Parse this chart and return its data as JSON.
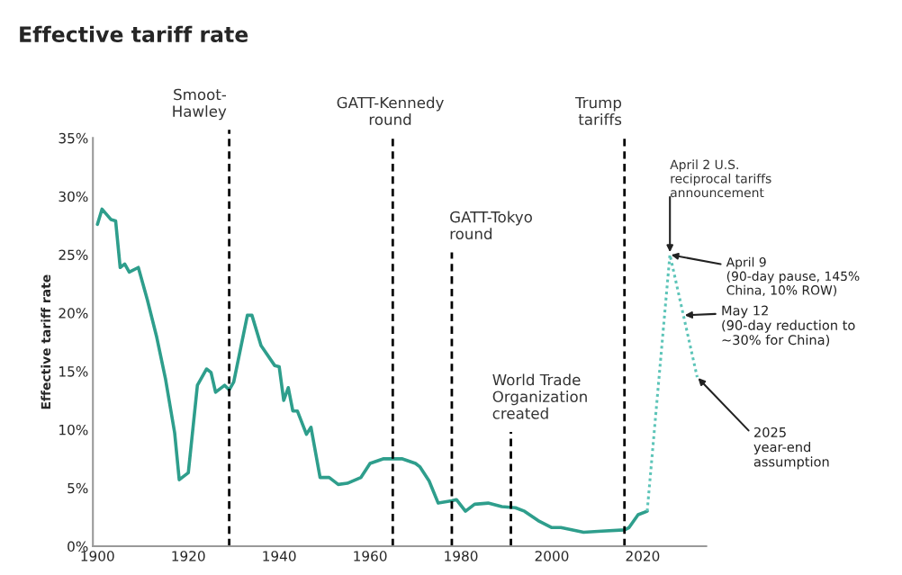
{
  "chart_data": {
    "type": "line",
    "title": "Effective tariff rate",
    "ylabel": "Effective tariff rate",
    "series": [
      {
        "color": "#2e9e8c",
        "line_style": "solid",
        "x": [
          1900,
          1901,
          1903,
          1904,
          1905,
          1906,
          1907,
          1909,
          1911,
          1913,
          1915,
          1917,
          1918,
          1920,
          1922,
          1924,
          1925,
          1926,
          1928,
          1929,
          1930,
          1933,
          1934,
          1936,
          1939,
          1940,
          1941,
          1942,
          1943,
          1944,
          1946,
          1947,
          1949,
          1951,
          1953,
          1955,
          1958,
          1960,
          1963,
          1967,
          1970,
          1971,
          1973,
          1975,
          1978,
          1979,
          1981,
          1983,
          1986,
          1989,
          1992,
          1994,
          1997,
          2000,
          2002,
          2007,
          2011,
          2016,
          2017,
          2019,
          2021
        ],
        "values": [
          27.6,
          28.9,
          28.0,
          27.9,
          23.9,
          24.2,
          23.5,
          23.9,
          21.1,
          18.0,
          14.3,
          9.7,
          5.7,
          6.3,
          13.8,
          15.2,
          14.9,
          13.2,
          13.8,
          13.4,
          14.1,
          19.8,
          19.8,
          17.2,
          15.5,
          15.4,
          12.5,
          13.6,
          11.6,
          11.6,
          9.6,
          10.2,
          5.9,
          5.9,
          5.3,
          5.4,
          5.9,
          7.1,
          7.5,
          7.5,
          7.1,
          6.8,
          5.6,
          3.7,
          3.9,
          4.0,
          3.0,
          3.6,
          3.7,
          3.4,
          3.3,
          3.0,
          2.2,
          1.6,
          1.6,
          1.2,
          1.3,
          1.4,
          1.6,
          2.7,
          3.0
        ]
      },
      {
        "color": "#5cc4b8",
        "line_style": "dotted",
        "x": [
          2021,
          2026,
          2032
        ],
        "values": [
          3.0,
          25.0,
          14.5
        ]
      }
    ],
    "xlim": [
      1899,
      2034
    ],
    "xticks": [
      1900,
      1920,
      1940,
      1960,
      1980,
      2000,
      2020
    ],
    "ylim": [
      0,
      35
    ],
    "yticks": [
      {
        "value": 0,
        "label": "0%"
      },
      {
        "value": 5,
        "label": "5%"
      },
      {
        "value": 10,
        "label": "10%"
      },
      {
        "value": 15,
        "label": "15%"
      },
      {
        "value": 20,
        "label": "20%"
      },
      {
        "value": 25,
        "label": "25%"
      },
      {
        "value": 30,
        "label": "30%"
      },
      {
        "value": 35,
        "label": "35%"
      }
    ],
    "ref_lines": [
      {
        "axis": "x",
        "value": 1929,
        "label": "Smoot-\nHawley",
        "line_style": "dashed",
        "color": "#000000"
      },
      {
        "axis": "x",
        "value": 1965,
        "label": "GATT-Kennedy\nround",
        "line_style": "dashed",
        "color": "#000000"
      },
      {
        "axis": "x",
        "value": 1978,
        "label": "GATT-Tokyo\nround",
        "line_style": "dashed",
        "color": "#000000"
      },
      {
        "axis": "x",
        "value": 1991,
        "label": "World Trade\nOrganization\ncreated",
        "line_style": "dashed",
        "color": "#000000"
      },
      {
        "axis": "x",
        "value": 2016,
        "label": "Trump\ntariffs",
        "line_style": "dashed",
        "color": "#000000"
      }
    ],
    "annotations": [
      {
        "text": "April 2 U.S.\nreciprocal tariffs\nannouncement",
        "x": 2026,
        "y": 25.0
      },
      {
        "text": "April 9\n(90-day pause, 145%\nChina, 10% ROW)",
        "x": 2026,
        "y": 25.0
      },
      {
        "text": "May 12\n(90-day reduction to\n~30% for China)",
        "x": 2029,
        "y": 19.8
      },
      {
        "text": "2025\nyear-end\nassumption",
        "x": 2032,
        "y": 14.5
      }
    ],
    "grid": false,
    "legend": false
  }
}
